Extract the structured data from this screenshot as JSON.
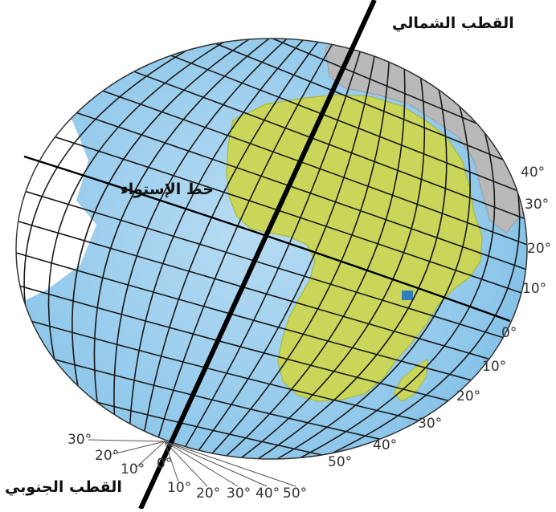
{
  "labels": {
    "north_pole": "القطب الشمالي",
    "south_pole": "القطب الجنوبي",
    "equator": "خط الإستواء"
  },
  "latitude_ticks": [
    "40°",
    "30°",
    "20°",
    "10°",
    "0°",
    "10°",
    "20°",
    "30°",
    "40°",
    "50°"
  ],
  "longitude_ticks_west": [
    "30°",
    "20°",
    "10°"
  ],
  "longitude_center": "0°",
  "longitude_ticks_east": [
    "10°",
    "20°",
    "30°",
    "40°",
    "50°"
  ],
  "colors": {
    "ocean": "#8ec7ea",
    "ocean_light": "#cfe8f7",
    "africa": "#c9d65a",
    "europe": "#b9b9b9",
    "ice": "#ffffff",
    "grid": "#1a1a1a",
    "axis": "#000000"
  }
}
